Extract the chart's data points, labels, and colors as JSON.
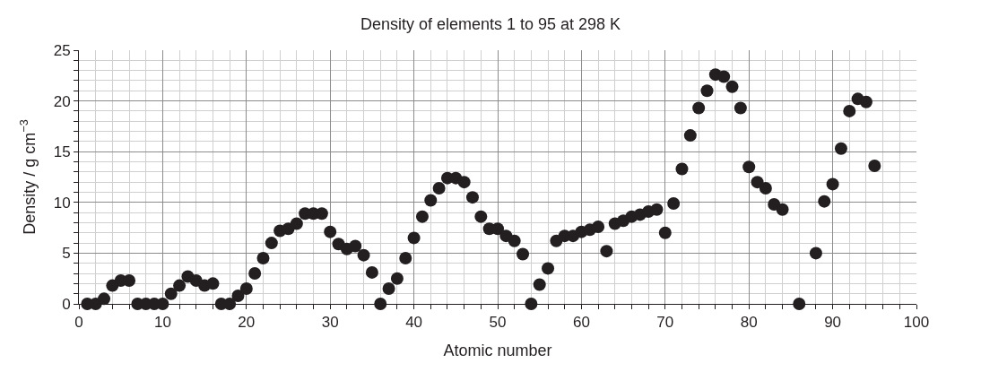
{
  "chart_data": {
    "type": "scatter",
    "title": "Density of elements 1 to 95 at 298 K",
    "xlabel": "Atomic number",
    "ylabel": "Density / g cm$^{−3}$",
    "x": [
      1,
      2,
      3,
      4,
      5,
      6,
      7,
      8,
      9,
      10,
      11,
      12,
      13,
      14,
      15,
      16,
      17,
      18,
      19,
      20,
      21,
      22,
      23,
      24,
      25,
      26,
      27,
      28,
      29,
      30,
      31,
      32,
      33,
      34,
      35,
      36,
      37,
      38,
      39,
      40,
      41,
      42,
      43,
      44,
      45,
      46,
      47,
      48,
      49,
      50,
      51,
      52,
      53,
      54,
      55,
      56,
      57,
      58,
      59,
      60,
      61,
      62,
      63,
      64,
      65,
      66,
      67,
      68,
      69,
      70,
      71,
      72,
      73,
      74,
      75,
      76,
      77,
      78,
      79,
      80,
      81,
      82,
      83,
      84,
      86,
      88,
      89,
      90,
      91,
      92,
      93,
      94,
      95
    ],
    "series": [
      {
        "color": "#231f20",
        "values": [
          0,
          0,
          0.5,
          1.8,
          2.3,
          2.3,
          0,
          0,
          0,
          0,
          1,
          1.8,
          2.7,
          2.3,
          1.8,
          2,
          0,
          0,
          0.8,
          1.5,
          3,
          4.5,
          6,
          7.2,
          7.4,
          7.9,
          8.9,
          8.9,
          8.9,
          7.1,
          5.9,
          5.4,
          5.7,
          4.8,
          3.1,
          0,
          1.5,
          2.5,
          4.5,
          6.5,
          8.6,
          10.2,
          11.4,
          12.4,
          12.4,
          12,
          10.5,
          8.6,
          7.4,
          7.4,
          6.7,
          6.2,
          4.9,
          0,
          1.9,
          3.5,
          6.2,
          6.7,
          6.7,
          7.1,
          7.3,
          7.6,
          5.2,
          7.9,
          8.2,
          8.6,
          8.8,
          9.1,
          9.3,
          7,
          9.9,
          13.3,
          16.6,
          19.3,
          21,
          22.6,
          22.4,
          21.4,
          19.3,
          13.5,
          12,
          11.4,
          9.8,
          9.3,
          0,
          5,
          10.1,
          11.8,
          15.3,
          19,
          20.2,
          19.9,
          13.6
        ]
      }
    ],
    "xlim": [
      0,
      100
    ],
    "ylim": [
      0,
      25
    ],
    "xticks": [
      0,
      10,
      20,
      30,
      40,
      50,
      60,
      70,
      80,
      90,
      100
    ],
    "yticks": [
      0,
      5,
      10,
      15,
      20,
      25
    ],
    "grid": true,
    "marker": "circle"
  }
}
